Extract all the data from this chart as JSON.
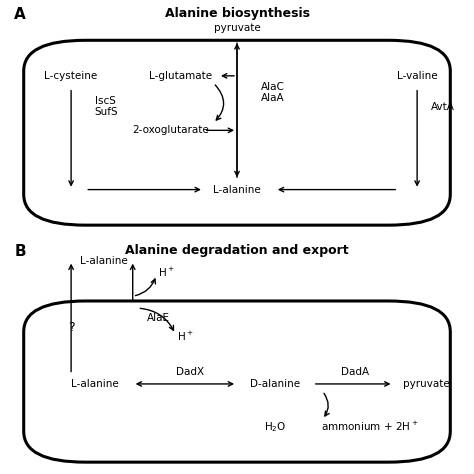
{
  "panel_A_title": "Alanine biosynthesis",
  "panel_B_title": "Alanine degradation and export",
  "panel_A_label": "A",
  "panel_B_label": "B",
  "bg_color": "#ffffff"
}
